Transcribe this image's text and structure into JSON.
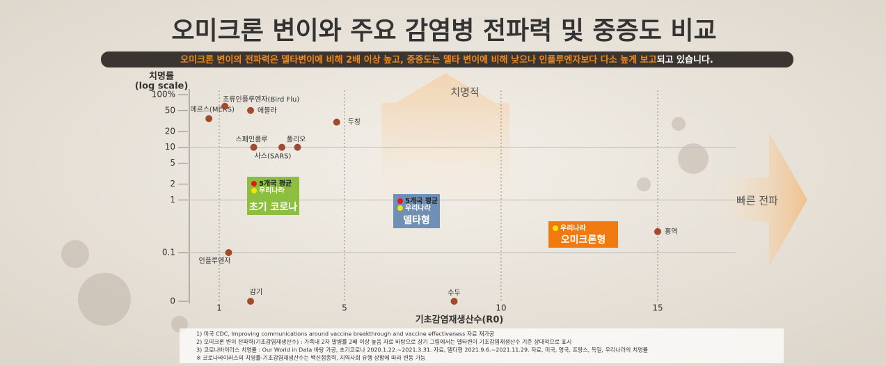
{
  "chart_data": {
    "type": "scatter",
    "title": "오미크론 변이와 주요 감염병 전파력 및 중증도 비교",
    "subtitle_highlight": "오미크론 변이의 전파력은 델타변이에 비해 2배 이상 높고, 중증도는 델타 변이에 비해 낮으나 인플루엔자보다 다소 높게 보고",
    "subtitle_rest": "되고 있습니다.",
    "y_label": "치명률",
    "y_label_note": "(log scale)",
    "x_label": "기초감염재생산수(R0)",
    "annotation_up": "치명적",
    "annotation_right": "빠른 전파",
    "log_scale": true,
    "xlim": [
      0,
      17.5
    ],
    "xticks": [
      1,
      5,
      10,
      15
    ],
    "ylim": [
      0,
      120
    ],
    "yticks": [
      {
        "value": 100,
        "label": "100%"
      },
      50,
      20,
      10,
      5,
      2,
      1,
      0.1,
      0
    ],
    "grid": true,
    "color": "#a24a2b",
    "points": {
      "labels": [
        "메르스(MERS)",
        "조류인플루엔자(Bird Flu)",
        "에볼라",
        "두창",
        "스페인플루",
        "사스(SARS)",
        "폴리오",
        "인플루엔자",
        "감기",
        "수두",
        "홍역"
      ],
      "x": [
        0.67,
        1.18,
        2,
        4.75,
        2.1,
        3,
        3.5,
        1.3,
        2,
        8.5,
        15
      ],
      "y": [
        35,
        60,
        50,
        30,
        10,
        10,
        10,
        0.1,
        0,
        0,
        0.25
      ]
    },
    "groups": [
      {
        "name": "초기 코로나",
        "color": "#8cbf3f",
        "items": [
          {
            "name": "5개국 평균",
            "color": "#e8141c"
          },
          {
            "name": "우리나라",
            "color": "#f5e400"
          }
        ]
      },
      {
        "name": "델타형",
        "color": "#6f8fb5",
        "items": [
          {
            "name": "5개국 평균",
            "color": "#e8141c"
          },
          {
            "name": "우리나라",
            "color": "#f5e400"
          }
        ]
      },
      {
        "name": "오미크론형",
        "color": "#f07a10",
        "items": [
          {
            "name": "우리나라",
            "color": "#f5e400"
          }
        ]
      }
    ],
    "footnotes": [
      "1) 미국 CDC, Improving communications around vaccine breakthrough and vaccine effectiveness 자료 재가공",
      "2) 오미크론 변이 전파력(기초감염재생산수) : 가족내 2차 발병률 2배 이상 높음 자료 바탕으로 상기 그림에서는 델타변이 기초감염재생산수 기준 상대적으로 표시",
      "3) 코로나바이러스 치명률 : Our World in Data 바탕 가공, 초기코로나 2020.1.22.~2021.3.31. 자료, 델타형 2021.9.6.~2021.11.29. 자료, 미국, 영국, 프랑스, 독일, 우리나라의 치명률",
      "※ 코로나바이러스의 치명률-기초감염재생산수는 백신접종력, 지역사회 유행 상황에 따라 변동 가능"
    ]
  }
}
